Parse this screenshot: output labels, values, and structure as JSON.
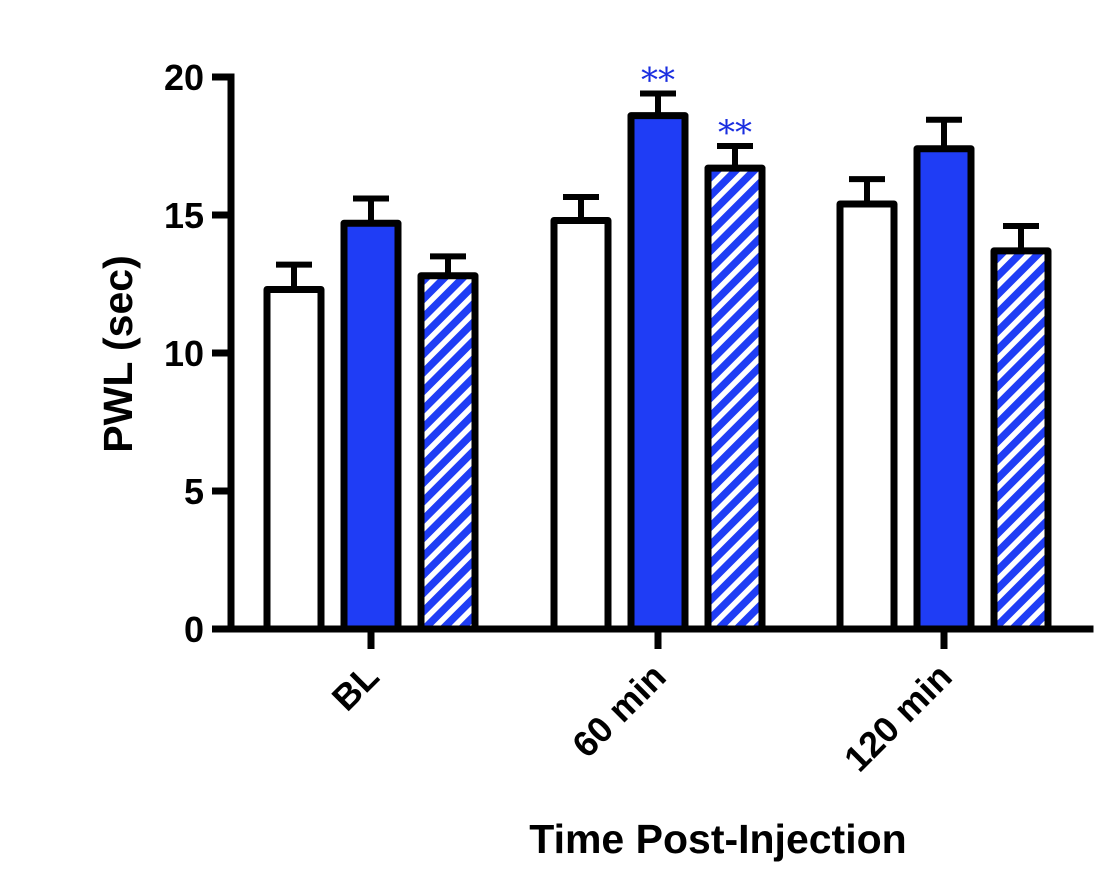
{
  "chart_data": {
    "type": "bar",
    "xlabel": "Time Post-Injection",
    "ylabel": "PWL (sec)",
    "ylim": [
      0,
      20
    ],
    "yticks": [
      0,
      5,
      10,
      15,
      20
    ],
    "categories": [
      "BL",
      "60 min",
      "120 min"
    ],
    "grid": false,
    "legend": "none",
    "series": [
      {
        "fill": "none",
        "values": [
          12.3,
          14.8,
          15.4
        ],
        "errors": [
          0.9,
          0.85,
          0.9
        ],
        "significance": [
          "",
          "",
          ""
        ]
      },
      {
        "fill": "solid",
        "values": [
          14.7,
          18.6,
          17.4
        ],
        "errors": [
          0.9,
          0.8,
          1.05
        ],
        "significance": [
          "",
          "**",
          ""
        ]
      },
      {
        "fill": "hatched",
        "values": [
          12.8,
          16.7,
          13.7
        ],
        "errors": [
          0.7,
          0.8,
          0.9
        ],
        "significance": [
          "",
          "**",
          ""
        ]
      }
    ]
  },
  "colors": {
    "blue": "#1f3df5",
    "axis": "#000000",
    "open_fill": "#ffffff",
    "significance": "#1a2ee0"
  }
}
